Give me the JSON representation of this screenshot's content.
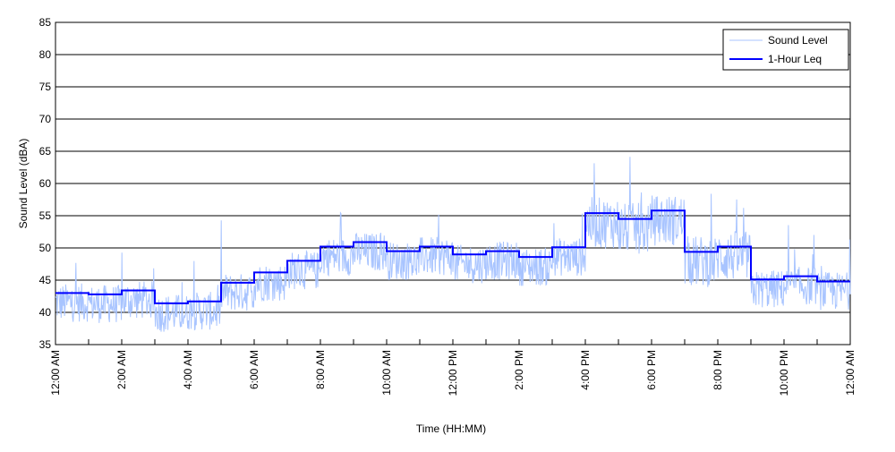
{
  "chart_data": {
    "type": "line",
    "title": "",
    "xlabel": "Time (HH:MM)",
    "ylabel": "Sound Level (dBA)",
    "ylim": [
      35,
      85
    ],
    "yticks": [
      "35",
      "40",
      "45",
      "50",
      "55",
      "60",
      "65",
      "70",
      "75",
      "80",
      "85"
    ],
    "xlim_hours": [
      0,
      24
    ],
    "xticks": [
      "12:00 AM",
      "2:00 AM",
      "4:00 AM",
      "6:00 AM",
      "8:00 AM",
      "10:00 AM",
      "12:00 PM",
      "2:00 PM",
      "4:00 PM",
      "6:00 PM",
      "8:00 PM",
      "10:00 PM",
      "12:00 AM"
    ],
    "grid": "horizontal",
    "legend": {
      "placement": "top-right",
      "entries": [
        "Sound Level",
        "1-Hour Leq"
      ]
    },
    "series": [
      {
        "name": "Sound Level",
        "color": "#a8c4ff",
        "kind": "continuous noisy trace around hourly Leq (min ~37, max ~65.5)"
      },
      {
        "name": "1-Hour Leq",
        "color": "#0000ff",
        "kind": "step",
        "hours": [
          0,
          1,
          2,
          3,
          4,
          5,
          6,
          7,
          8,
          9,
          10,
          11,
          12,
          13,
          14,
          15,
          16,
          17,
          18,
          19,
          20,
          21,
          22,
          23
        ],
        "values": [
          43.0,
          42.8,
          43.4,
          41.4,
          41.7,
          44.6,
          46.2,
          48.0,
          50.2,
          50.9,
          49.5,
          50.2,
          49.0,
          49.5,
          48.6,
          50.1,
          55.4,
          54.5,
          55.8,
          49.4,
          50.2,
          45.1,
          45.6,
          44.8
        ]
      }
    ]
  }
}
